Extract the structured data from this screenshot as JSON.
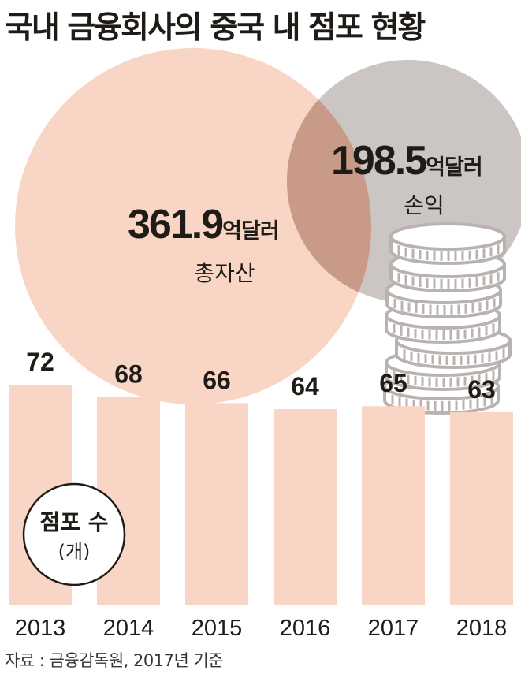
{
  "title": "국내 금융회사의 중국 내 점포 현황",
  "source": "자료 : 금융감독원, 2017년 기준",
  "colors": {
    "bar": "#f8d5c4",
    "assets_circle": "#f8d5c4",
    "profit_circle": "#cbc5c3",
    "overlap": "#c99a87",
    "text": "#1f1b17",
    "coin_stroke": "#b8b3b0"
  },
  "chart_data": [
    {
      "type": "bar",
      "legend": {
        "line1": "점포 수",
        "line2": "(개)"
      },
      "categories": [
        "2013",
        "2014",
        "2015",
        "2016",
        "2017",
        "2018"
      ],
      "values": [
        72,
        68,
        66,
        64,
        65,
        63
      ]
    },
    {
      "type": "venn",
      "sets": [
        {
          "label": "총자산",
          "value": "361.9",
          "unit": "억달러"
        },
        {
          "label": "손익",
          "value": "198.5",
          "unit": "억달러"
        }
      ]
    }
  ]
}
